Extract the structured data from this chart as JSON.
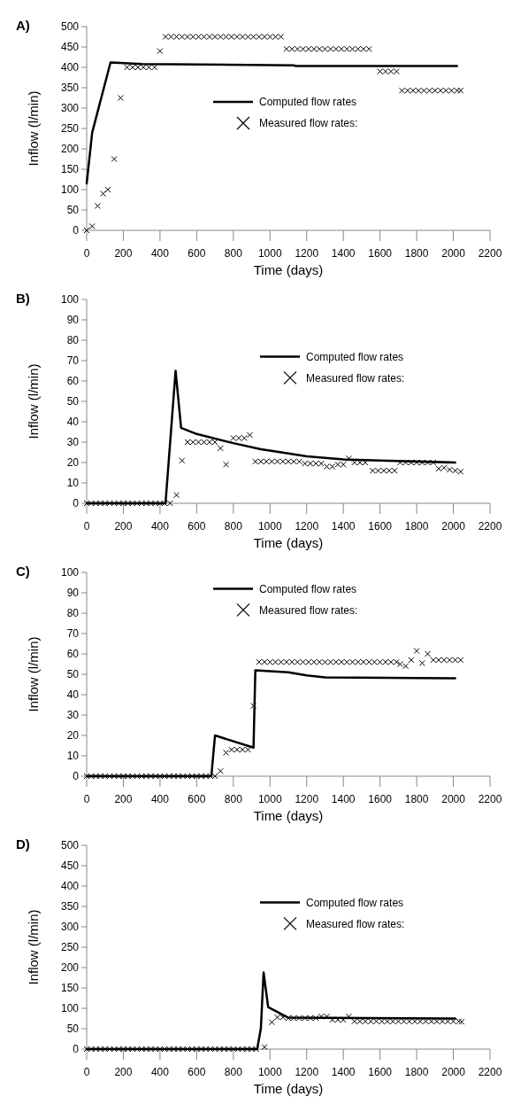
{
  "chart_data": [
    {
      "type": "line",
      "title": "A)",
      "xlabel": "Time (days)",
      "ylabel": "Inflow (l/min)",
      "xlim": [
        0,
        2200
      ],
      "xticks": [
        0,
        200,
        400,
        600,
        800,
        1000,
        1200,
        1400,
        1600,
        1800,
        2000,
        2200
      ],
      "ylim": [
        0,
        500
      ],
      "yticks": [
        0,
        50,
        100,
        150,
        200,
        250,
        300,
        350,
        400,
        450,
        500
      ],
      "legend": "center",
      "series": [
        {
          "name": "Computed flow rates",
          "color": "#000000",
          "marker": "none",
          "x": [
            0,
            30,
            130,
            300,
            1130,
            1140,
            2020
          ],
          "values": [
            115,
            240,
            412,
            408,
            405,
            403,
            403
          ]
        },
        {
          "name": "Measured flow rates:",
          "type": "scatter",
          "color": "#000000",
          "marker": "cross",
          "x": [
            0,
            30,
            60,
            90,
            115,
            150,
            185,
            220,
            250,
            280,
            310,
            340,
            370,
            400,
            430,
            460,
            490,
            520,
            550,
            580,
            610,
            640,
            670,
            700,
            730,
            760,
            790,
            820,
            850,
            880,
            910,
            940,
            970,
            1000,
            1030,
            1060,
            1090,
            1120,
            1150,
            1180,
            1210,
            1240,
            1270,
            1300,
            1330,
            1360,
            1390,
            1420,
            1450,
            1480,
            1510,
            1540,
            1600,
            1630,
            1660,
            1690,
            1720,
            1750,
            1780,
            1810,
            1840,
            1870,
            1900,
            1930,
            1960,
            1990,
            2020,
            2040
          ],
          "values": [
            0,
            10,
            60,
            90,
            100,
            175,
            325,
            400,
            400,
            400,
            400,
            400,
            400,
            440,
            475,
            475,
            475,
            475,
            475,
            475,
            475,
            475,
            475,
            475,
            475,
            475,
            475,
            475,
            475,
            475,
            475,
            475,
            475,
            475,
            475,
            475,
            445,
            445,
            445,
            445,
            445,
            445,
            445,
            445,
            445,
            445,
            445,
            445,
            445,
            445,
            445,
            445,
            390,
            390,
            390,
            390,
            343,
            343,
            343,
            343,
            343,
            343,
            343,
            343,
            343,
            343,
            343,
            343
          ]
        }
      ]
    },
    {
      "type": "line",
      "title": "B)",
      "xlabel": "Time (days)",
      "ylabel": "Inflow (l/min)",
      "xlim": [
        0,
        2200
      ],
      "xticks": [
        0,
        200,
        400,
        600,
        800,
        1000,
        1200,
        1400,
        1600,
        1800,
        2000,
        2200
      ],
      "ylim": [
        0,
        100
      ],
      "yticks": [
        0,
        10,
        20,
        30,
        40,
        50,
        60,
        70,
        80,
        90,
        100
      ],
      "legend": "top right",
      "series": [
        {
          "name": "Computed flow rates",
          "color": "#000000",
          "marker": "none",
          "x": [
            0,
            430,
            485,
            515,
            600,
            800,
            950,
            1100,
            1200,
            1400,
            1600,
            2010
          ],
          "values": [
            0,
            0,
            65,
            37,
            34,
            29.5,
            26.5,
            24.5,
            23,
            21.5,
            21,
            20
          ]
        },
        {
          "name": "Measured flow rates:",
          "type": "scatter",
          "color": "#000000",
          "marker": "cross",
          "x": [
            0,
            25,
            50,
            75,
            100,
            125,
            150,
            175,
            200,
            225,
            250,
            275,
            300,
            325,
            350,
            375,
            400,
            425,
            455,
            490,
            520,
            550,
            580,
            610,
            640,
            670,
            700,
            730,
            760,
            800,
            830,
            860,
            890,
            920,
            950,
            980,
            1010,
            1040,
            1070,
            1100,
            1130,
            1160,
            1190,
            1220,
            1250,
            1280,
            1310,
            1340,
            1370,
            1400,
            1430,
            1460,
            1490,
            1520,
            1560,
            1590,
            1620,
            1650,
            1680,
            1710,
            1740,
            1770,
            1800,
            1830,
            1860,
            1890,
            1920,
            1950,
            1980,
            2010,
            2040
          ],
          "values": [
            0,
            0,
            0,
            0,
            0,
            0,
            0,
            0,
            0,
            0,
            0,
            0,
            0,
            0,
            0,
            0,
            0,
            0,
            0,
            4,
            21,
            30,
            30,
            30,
            30,
            30,
            30,
            27,
            19,
            32,
            32,
            32,
            33.5,
            20.5,
            20.5,
            20.5,
            20.5,
            20.5,
            20.5,
            20.5,
            20.5,
            20.5,
            19.5,
            19.5,
            19.5,
            19.5,
            18,
            18,
            19,
            19,
            22,
            20,
            20,
            20,
            16,
            16,
            16,
            16,
            16,
            20,
            20,
            20,
            20,
            20,
            20,
            20,
            17,
            17.5,
            16.5,
            16,
            15.5
          ]
        }
      ]
    },
    {
      "type": "line",
      "title": "C)",
      "xlabel": "Time (days)",
      "ylabel": "Inflow (l/min)",
      "xlim": [
        0,
        2200
      ],
      "xticks": [
        0,
        200,
        400,
        600,
        800,
        1000,
        1200,
        1400,
        1600,
        1800,
        2000,
        2200
      ],
      "ylim": [
        0,
        100
      ],
      "yticks": [
        0,
        10,
        20,
        30,
        40,
        50,
        60,
        70,
        80,
        90,
        100
      ],
      "legend": "top",
      "series": [
        {
          "name": "Computed flow rates",
          "color": "#000000",
          "marker": "none",
          "x": [
            0,
            680,
            700,
            910,
            920,
            1100,
            1200,
            1300,
            2010
          ],
          "values": [
            0,
            0,
            20,
            14,
            52,
            51,
            49.5,
            48.5,
            48
          ]
        },
        {
          "name": "Measured flow rates:",
          "type": "scatter",
          "color": "#000000",
          "marker": "cross",
          "x": [
            0,
            25,
            50,
            75,
            100,
            125,
            150,
            175,
            200,
            225,
            250,
            275,
            300,
            325,
            350,
            375,
            400,
            425,
            450,
            475,
            500,
            525,
            550,
            575,
            600,
            625,
            650,
            675,
            700,
            730,
            760,
            790,
            820,
            850,
            880,
            910,
            940,
            970,
            1000,
            1030,
            1060,
            1090,
            1120,
            1150,
            1180,
            1210,
            1240,
            1270,
            1300,
            1330,
            1360,
            1390,
            1420,
            1450,
            1480,
            1510,
            1540,
            1570,
            1600,
            1630,
            1660,
            1690,
            1710,
            1740,
            1770,
            1800,
            1830,
            1860,
            1890,
            1920,
            1950,
            1980,
            2010,
            2040
          ],
          "values": [
            0,
            0,
            0,
            0,
            0,
            0,
            0,
            0,
            0,
            0,
            0,
            0,
            0,
            0,
            0,
            0,
            0,
            0,
            0,
            0,
            0,
            0,
            0,
            0,
            0,
            0,
            0,
            0,
            0,
            2.5,
            11.5,
            13,
            13,
            13,
            13,
            34.5,
            56,
            56,
            56,
            56,
            56,
            56,
            56,
            56,
            56,
            56,
            56,
            56,
            56,
            56,
            56,
            56,
            56,
            56,
            56,
            56,
            56,
            56,
            56,
            56,
            56,
            56,
            55,
            54,
            57,
            61.5,
            55.5,
            60,
            57,
            57,
            57,
            57,
            57,
            57
          ]
        }
      ]
    },
    {
      "type": "line",
      "title": "D)",
      "xlabel": "Time (days)",
      "ylabel": "Inflow (l/min)",
      "xlim": [
        0,
        2200
      ],
      "xticks": [
        0,
        200,
        400,
        600,
        800,
        1000,
        1200,
        1400,
        1600,
        1800,
        2000,
        2200
      ],
      "ylim": [
        0,
        500
      ],
      "yticks": [
        0,
        50,
        100,
        150,
        200,
        250,
        300,
        350,
        400,
        450,
        500
      ],
      "legend": "top right",
      "series": [
        {
          "name": "Computed flow rates",
          "color": "#000000",
          "marker": "none",
          "x": [
            0,
            930,
            950,
            965,
            990,
            1100,
            2010
          ],
          "values": [
            0,
            0,
            50,
            188,
            103,
            77,
            75
          ]
        },
        {
          "name": "Measured flow rates:",
          "type": "scatter",
          "color": "#000000",
          "marker": "cross",
          "x": [
            0,
            25,
            50,
            75,
            100,
            125,
            150,
            175,
            200,
            225,
            250,
            275,
            300,
            325,
            350,
            375,
            400,
            425,
            450,
            475,
            500,
            525,
            550,
            575,
            600,
            625,
            650,
            675,
            700,
            725,
            750,
            775,
            800,
            825,
            850,
            875,
            900,
            925,
            970,
            1010,
            1040,
            1070,
            1100,
            1130,
            1160,
            1190,
            1220,
            1250,
            1280,
            1310,
            1340,
            1370,
            1400,
            1430,
            1460,
            1490,
            1520,
            1550,
            1580,
            1610,
            1640,
            1670,
            1700,
            1730,
            1760,
            1790,
            1820,
            1850,
            1880,
            1910,
            1940,
            1970,
            2000,
            2030,
            2045
          ],
          "values": [
            0,
            0,
            0,
            0,
            0,
            0,
            0,
            0,
            0,
            0,
            0,
            0,
            0,
            0,
            0,
            0,
            0,
            0,
            0,
            0,
            0,
            0,
            0,
            0,
            0,
            0,
            0,
            0,
            0,
            0,
            0,
            0,
            0,
            0,
            0,
            0,
            0,
            0,
            5,
            66,
            78,
            78,
            76,
            76,
            76,
            76,
            76,
            76,
            80,
            80,
            72,
            72,
            72,
            80,
            68,
            68,
            68,
            68,
            68,
            68,
            68,
            68,
            68,
            68,
            68,
            68,
            68,
            68,
            68,
            68,
            68,
            68,
            68,
            68,
            67
          ]
        }
      ]
    }
  ]
}
